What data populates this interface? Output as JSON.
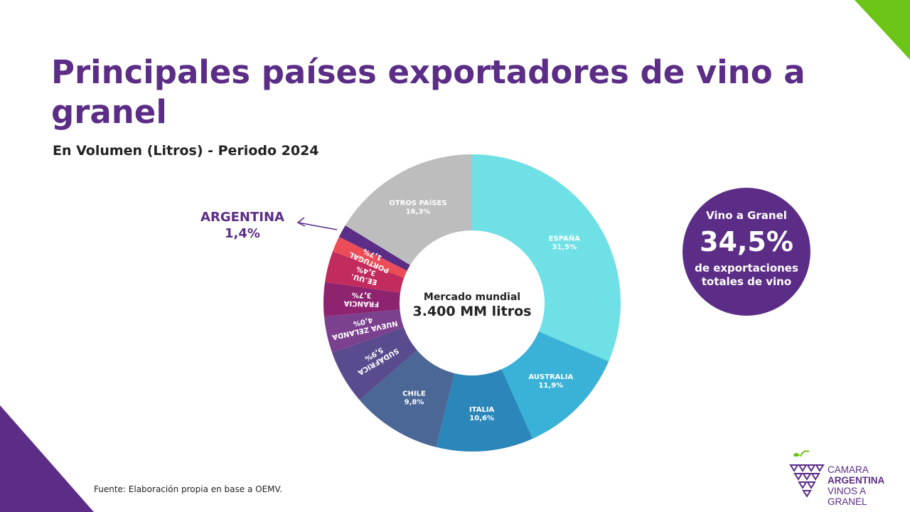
{
  "title": "Principales países exportadores de vino a granel",
  "subtitle": "En Volumen (Litros) - Periodo 2024",
  "center": {
    "line1": "Mercado mundial",
    "line2": "3.400 MM litros"
  },
  "callout": {
    "name": "ARGENTINA",
    "value": "1,4%"
  },
  "badge": {
    "title": "Vino a Granel",
    "value": "34,5%",
    "subtitle": "de exportaciones totales de vino"
  },
  "footnote": "Fuente: Elaboración propia en base a OEMV.",
  "logo": {
    "line1": "CAMARA",
    "line2": "ARGENTINA",
    "line3": "VINOS A GRANEL"
  },
  "colors": {
    "brand": "#5b2d86",
    "accent": "#6cc417"
  },
  "chart_data": {
    "type": "pie",
    "donut": true,
    "slices": [
      {
        "label": "ESPAÑA",
        "value_label": "31,5%",
        "value": 31.5,
        "color": "#6ee0e6"
      },
      {
        "label": "AUSTRALIA",
        "value_label": "11,9%",
        "value": 11.9,
        "color": "#3ab2d7"
      },
      {
        "label": "ITALIA",
        "value_label": "10,6%",
        "value": 10.6,
        "color": "#2b86b9"
      },
      {
        "label": "CHILE",
        "value_label": "9,8%",
        "value": 9.8,
        "color": "#4a6796"
      },
      {
        "label": "SUDÁFRICA",
        "value_label": "5,9%",
        "value": 5.9,
        "color": "#5a4b8e"
      },
      {
        "label": "NUEVA ZELANDA",
        "value_label": "4,0%",
        "value": 4.0,
        "color": "#7b418f"
      },
      {
        "label": "FRANCIA",
        "value_label": "3,7%",
        "value": 3.7,
        "color": "#8e2370"
      },
      {
        "label": "EE.UU.",
        "value_label": "3,4%",
        "value": 3.4,
        "color": "#c22b5d"
      },
      {
        "label": "PORTUGAL",
        "value_label": "1,7%",
        "value": 1.7,
        "color": "#ec4c57"
      },
      {
        "label": "ARGENTINA",
        "value_label": "",
        "value": 1.4,
        "color": "#5b2d86"
      },
      {
        "label": "OTROS PAÍSES",
        "value_label": "16,3%",
        "value": 16.3,
        "color": "#bdbdbd"
      }
    ]
  }
}
